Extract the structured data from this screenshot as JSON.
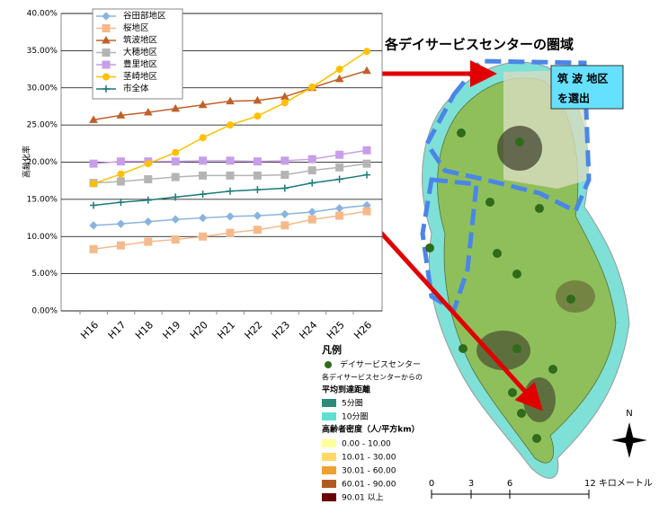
{
  "chart_data": {
    "type": "line",
    "y_label": "高齢化率",
    "categories": [
      "H16",
      "H17",
      "H18",
      "H19",
      "H20",
      "H21",
      "H22",
      "H23",
      "H24",
      "H25",
      "H26"
    ],
    "series": [
      {
        "name": "谷田部地区",
        "color": "#8ab4e0",
        "marker": "diamond",
        "values": [
          11.5,
          11.7,
          12.0,
          12.3,
          12.5,
          12.7,
          12.8,
          13.0,
          13.3,
          13.8,
          14.2
        ]
      },
      {
        "name": "桜地区",
        "color": "#f5b98a",
        "marker": "square",
        "values": [
          8.3,
          8.8,
          9.3,
          9.6,
          10.0,
          10.5,
          10.9,
          11.5,
          12.3,
          12.8,
          13.4
        ]
      },
      {
        "name": "筑波地区",
        "color": "#c0602a",
        "marker": "triangle",
        "values": [
          25.7,
          26.3,
          26.7,
          27.2,
          27.7,
          28.2,
          28.3,
          28.8,
          30.0,
          31.2,
          32.3
        ]
      },
      {
        "name": "大穂地区",
        "color": "#b4b4b4",
        "marker": "square",
        "values": [
          17.2,
          17.4,
          17.7,
          18.0,
          18.2,
          18.2,
          18.2,
          18.3,
          18.9,
          19.3,
          19.8
        ]
      },
      {
        "name": "豊里地区",
        "color": "#c89ee8",
        "marker": "square",
        "values": [
          19.8,
          20.1,
          20.1,
          20.1,
          20.2,
          20.2,
          20.1,
          20.2,
          20.4,
          21.0,
          21.6
        ]
      },
      {
        "name": "茎崎地区",
        "color": "#ffc000",
        "marker": "circle",
        "values": [
          17.1,
          18.4,
          19.8,
          21.3,
          23.3,
          25.0,
          26.2,
          28.0,
          30.1,
          32.5,
          34.9
        ]
      },
      {
        "name": "市全体",
        "color": "#1a7a7a",
        "marker": "plus",
        "values": [
          14.2,
          14.6,
          14.9,
          15.3,
          15.7,
          16.1,
          16.3,
          16.5,
          17.2,
          17.7,
          18.3
        ]
      }
    ],
    "ylim": [
      0,
      40
    ],
    "yticks": [
      {
        "value": 0,
        "label": "0.00%"
      },
      {
        "value": 5,
        "label": "5.00%"
      },
      {
        "value": 10,
        "label": "10.00%"
      },
      {
        "value": 15,
        "label": "15.00%"
      },
      {
        "value": 20,
        "label": "20.00%"
      },
      {
        "value": 25,
        "label": "25.00%"
      },
      {
        "value": 30,
        "label": "30.00%"
      },
      {
        "value": 35,
        "label": "35.00%"
      },
      {
        "value": 40,
        "label": "40.00%"
      }
    ],
    "grid": true,
    "legend": "upper-left"
  },
  "map": {
    "title": "各デイサービスセンターの圏域",
    "callout": [
      "筑 波 地区",
      "を選出"
    ],
    "legend_title": "凡例",
    "center_label": "デイサービスセンター",
    "distance_title": [
      "各デイサービスセンターからの",
      "平均到達距離"
    ],
    "distance_items": [
      "5分圏",
      "10分圏"
    ],
    "density_title": "高齢者密度（人/平方km）",
    "density_items": [
      "0.00 - 10.00",
      "10.01 - 30.00",
      "30.01 - 60.00",
      "60.01 - 90.00",
      "90.01 以上"
    ],
    "scale": [
      "0",
      "3",
      "6",
      "12 キロメートル"
    ],
    "north": "N"
  }
}
